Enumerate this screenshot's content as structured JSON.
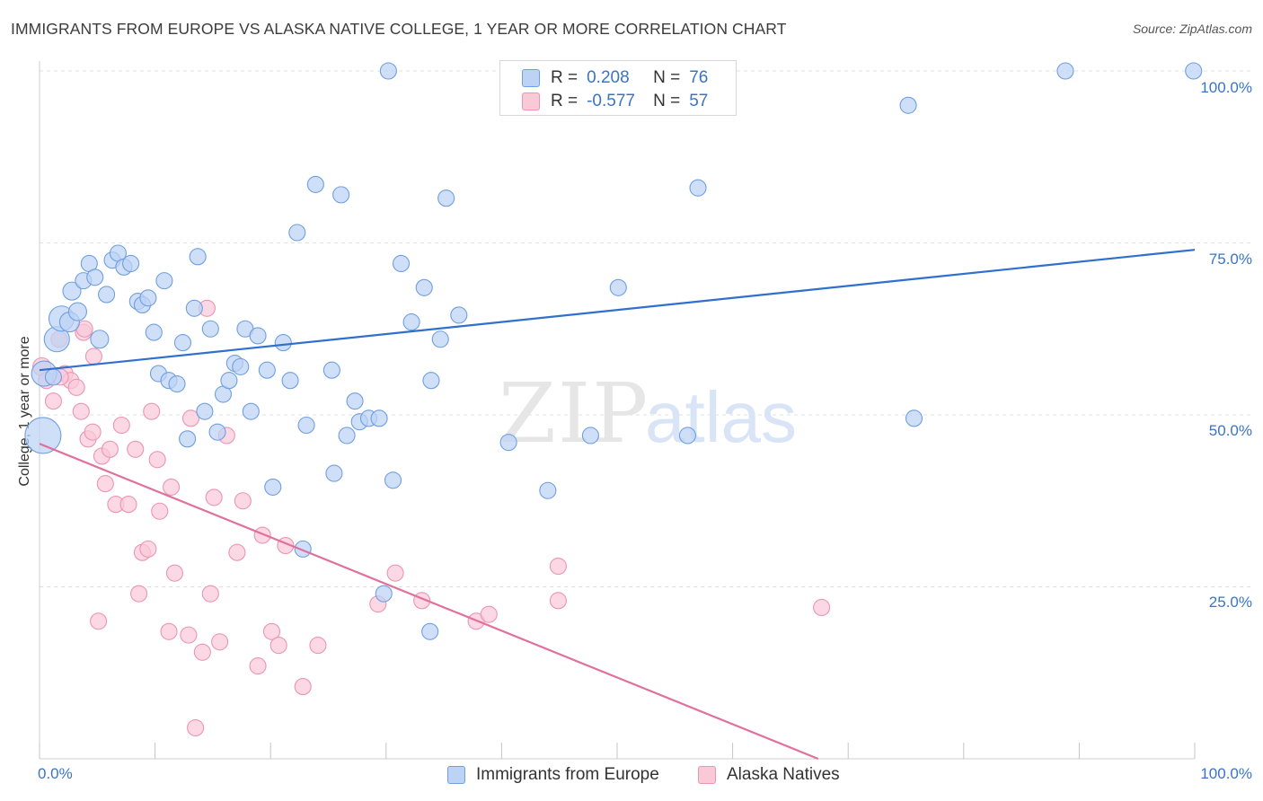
{
  "chart_data": {
    "type": "scatter",
    "title": "IMMIGRANTS FROM EUROPE VS ALASKA NATIVE COLLEGE, 1 YEAR OR MORE CORRELATION CHART",
    "source": "Source: ZipAtlas.com",
    "xlabel": "",
    "ylabel": "College, 1 year or more",
    "xlim": [
      0,
      100
    ],
    "ylim": [
      0,
      100
    ],
    "x_tick_labels": [
      "0.0%",
      "100.0%"
    ],
    "y_tick_values": [
      25,
      50,
      75,
      100
    ],
    "y_tick_labels": [
      "25.0%",
      "50.0%",
      "75.0%",
      "100.0%"
    ],
    "watermark": {
      "zip": "ZIP",
      "atlas": "atlas"
    },
    "legend": {
      "r_label": "R =",
      "n_label": "N =",
      "rows": [
        {
          "r": "0.208",
          "n": "76"
        },
        {
          "r": "-0.577",
          "n": "57"
        }
      ]
    },
    "series": [
      {
        "name": "Immigrants from Europe",
        "color": "#6f9fe0",
        "fill": "#bcd3f5",
        "line_color": "#2f6fce",
        "trend": {
          "x": [
            0,
            100
          ],
          "y": [
            56.5,
            74.0
          ]
        },
        "points": [
          [
            0.3,
            47,
            20
          ],
          [
            0.4,
            56,
            14
          ],
          [
            1.5,
            61,
            14
          ],
          [
            1.9,
            64,
            14
          ],
          [
            2.6,
            63.5,
            11
          ],
          [
            3.3,
            65,
            10
          ],
          [
            2.8,
            68,
            10
          ],
          [
            3.8,
            69.5,
            9
          ],
          [
            4.3,
            72,
            9
          ],
          [
            4.8,
            70,
            9
          ],
          [
            5.2,
            61,
            10
          ],
          [
            5.8,
            67.5,
            9
          ],
          [
            6.3,
            72.5,
            9
          ],
          [
            6.8,
            73.5,
            9
          ],
          [
            7.3,
            71.5,
            9
          ],
          [
            7.9,
            72,
            9
          ],
          [
            8.5,
            66.5,
            9
          ],
          [
            8.9,
            66,
            9
          ],
          [
            9.4,
            67,
            9
          ],
          [
            9.9,
            62,
            9
          ],
          [
            10.3,
            56,
            9
          ],
          [
            10.8,
            69.5,
            9
          ],
          [
            11.2,
            55,
            9
          ],
          [
            11.9,
            54.5,
            9
          ],
          [
            12.4,
            60.5,
            9
          ],
          [
            12.8,
            46.5,
            9
          ],
          [
            13.4,
            65.5,
            9
          ],
          [
            13.7,
            73,
            9
          ],
          [
            14.3,
            50.5,
            9
          ],
          [
            14.8,
            62.5,
            9
          ],
          [
            15.4,
            47.5,
            9
          ],
          [
            15.9,
            53,
            9
          ],
          [
            16.4,
            55,
            9
          ],
          [
            16.9,
            57.5,
            9
          ],
          [
            17.4,
            57,
            9
          ],
          [
            17.8,
            62.5,
            9
          ],
          [
            18.3,
            50.5,
            9
          ],
          [
            18.9,
            61.5,
            9
          ],
          [
            19.7,
            56.5,
            9
          ],
          [
            20.2,
            39.5,
            9
          ],
          [
            21.1,
            60.5,
            9
          ],
          [
            21.7,
            55,
            9
          ],
          [
            22.3,
            76.5,
            9
          ],
          [
            22.8,
            30.5,
            9
          ],
          [
            23.1,
            48.5,
            9
          ],
          [
            23.9,
            83.5,
            9
          ],
          [
            25.3,
            56.5,
            9
          ],
          [
            25.5,
            41.5,
            9
          ],
          [
            26.1,
            82,
            9
          ],
          [
            26.6,
            47,
            9
          ],
          [
            27.3,
            52,
            9
          ],
          [
            27.7,
            49,
            9
          ],
          [
            28.5,
            49.5,
            9
          ],
          [
            29.4,
            49.5,
            9
          ],
          [
            29.8,
            24,
            9
          ],
          [
            30.6,
            40.5,
            9
          ],
          [
            30.2,
            100,
            9
          ],
          [
            31.3,
            72,
            9
          ],
          [
            32.2,
            63.5,
            9
          ],
          [
            33.3,
            68.5,
            9
          ],
          [
            33.8,
            18.5,
            9
          ],
          [
            33.9,
            55,
            9
          ],
          [
            34.7,
            61,
            9
          ],
          [
            35.2,
            81.5,
            9
          ],
          [
            36.3,
            64.5,
            9
          ],
          [
            40.6,
            46,
            9
          ],
          [
            44,
            39,
            9
          ],
          [
            47.7,
            47,
            9
          ],
          [
            50.1,
            68.5,
            9
          ],
          [
            56.1,
            47,
            9
          ],
          [
            57,
            83,
            9
          ],
          [
            75.2,
            95,
            9
          ],
          [
            75.7,
            49.5,
            9
          ],
          [
            88.8,
            100,
            9
          ],
          [
            99.9,
            100,
            9
          ],
          [
            1.2,
            55.5,
            9
          ]
        ]
      },
      {
        "name": "Alaska Natives",
        "color": "#ec94b4",
        "fill": "#f9c9d8",
        "line_color": "#e1719c",
        "trend": {
          "x": [
            0,
            67.4
          ],
          "y": [
            45.8,
            0
          ]
        },
        "points": [
          [
            0.2,
            57,
            10
          ],
          [
            0.6,
            55,
            9
          ],
          [
            1.2,
            52,
            9
          ],
          [
            1.7,
            61,
            9
          ],
          [
            2.2,
            56,
            9
          ],
          [
            2.7,
            55,
            9
          ],
          [
            3.2,
            54,
            9
          ],
          [
            3.6,
            50.5,
            9
          ],
          [
            4.2,
            46.5,
            9
          ],
          [
            4.6,
            47.5,
            9
          ],
          [
            5.1,
            20,
            9
          ],
          [
            5.4,
            44,
            9
          ],
          [
            5.7,
            40,
            9
          ],
          [
            6.1,
            45,
            9
          ],
          [
            6.6,
            37,
            9
          ],
          [
            7.1,
            48.5,
            9
          ],
          [
            7.7,
            37,
            9
          ],
          [
            8.3,
            45,
            9
          ],
          [
            8.6,
            24,
            9
          ],
          [
            8.9,
            30,
            9
          ],
          [
            9.4,
            30.5,
            9
          ],
          [
            9.7,
            50.5,
            9
          ],
          [
            10.2,
            43.5,
            9
          ],
          [
            10.4,
            36,
            9
          ],
          [
            11.2,
            18.5,
            9
          ],
          [
            11.4,
            39.5,
            9
          ],
          [
            11.7,
            27,
            9
          ],
          [
            12.9,
            18,
            9
          ],
          [
            13.1,
            49.5,
            9
          ],
          [
            13.5,
            4.5,
            9
          ],
          [
            14.1,
            15.5,
            9
          ],
          [
            14.5,
            65.5,
            9
          ],
          [
            14.8,
            24,
            9
          ],
          [
            15.1,
            38,
            9
          ],
          [
            15.6,
            17,
            9
          ],
          [
            16.2,
            47,
            9
          ],
          [
            17.1,
            30,
            9
          ],
          [
            17.6,
            37.5,
            9
          ],
          [
            18.9,
            13.5,
            9
          ],
          [
            19.3,
            32.5,
            9
          ],
          [
            20.1,
            18.5,
            9
          ],
          [
            20.7,
            16.5,
            9
          ],
          [
            21.3,
            31,
            9
          ],
          [
            22.8,
            10.5,
            9
          ],
          [
            24.1,
            16.5,
            9
          ],
          [
            29.3,
            22.5,
            9
          ],
          [
            30.8,
            27,
            9
          ],
          [
            33.1,
            23,
            9
          ],
          [
            37.8,
            20,
            9
          ],
          [
            38.9,
            21,
            9
          ],
          [
            44.9,
            23,
            9
          ],
          [
            44.9,
            28,
            9
          ],
          [
            67.7,
            22,
            9
          ],
          [
            1.8,
            55.5,
            9
          ],
          [
            3.8,
            62,
            9
          ],
          [
            3.9,
            62.5,
            9
          ],
          [
            4.7,
            58.5,
            9
          ]
        ]
      }
    ]
  }
}
